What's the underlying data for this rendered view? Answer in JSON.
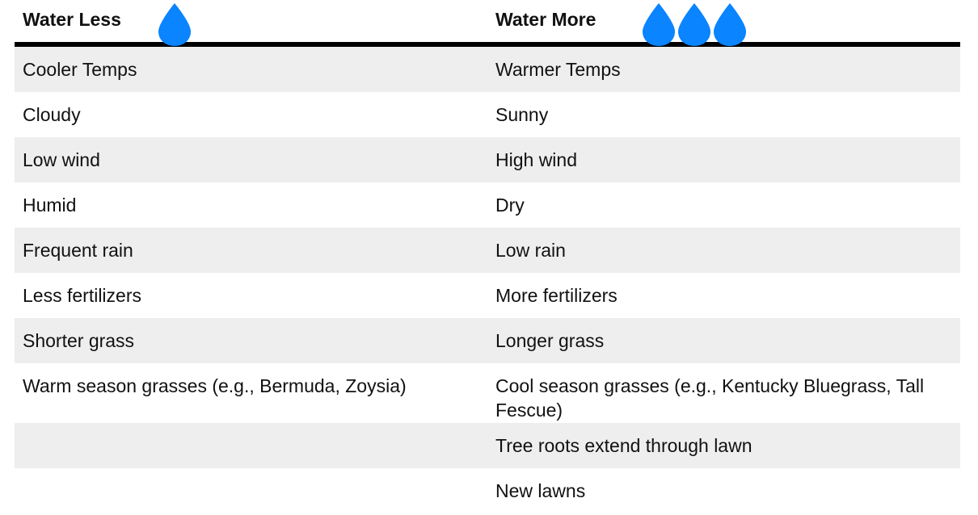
{
  "header": {
    "left_title": "Water Less",
    "right_title": "Water More",
    "left_drop_icon": "water-drop-icon",
    "right_drop_icons": [
      "water-drop-icon",
      "water-drop-icon",
      "water-drop-icon"
    ],
    "drop_color": "#0a84ff",
    "rule_color": "#000000"
  },
  "rows": [
    {
      "left": "Cooler Temps",
      "right": "Warmer Temps"
    },
    {
      "left": "Cloudy",
      "right": "Sunny"
    },
    {
      "left": "Low wind",
      "right": "High wind"
    },
    {
      "left": "Humid",
      "right": "Dry"
    },
    {
      "left": "Frequent rain",
      "right": "Low rain"
    },
    {
      "left": "Less fertilizers",
      "right": "More fertilizers"
    },
    {
      "left": "Shorter grass",
      "right": "Longer grass"
    },
    {
      "left": "Warm season grasses (e.g., Bermuda, Zoysia)",
      "right": "Cool season grasses (e.g., Kentucky Bluegrass, Tall Fescue)"
    },
    {
      "left": "",
      "right": "Tree roots extend through lawn"
    },
    {
      "left": "",
      "right": "New lawns"
    }
  ],
  "colors": {
    "row_shade": "#eeeeee",
    "text": "#111111"
  }
}
